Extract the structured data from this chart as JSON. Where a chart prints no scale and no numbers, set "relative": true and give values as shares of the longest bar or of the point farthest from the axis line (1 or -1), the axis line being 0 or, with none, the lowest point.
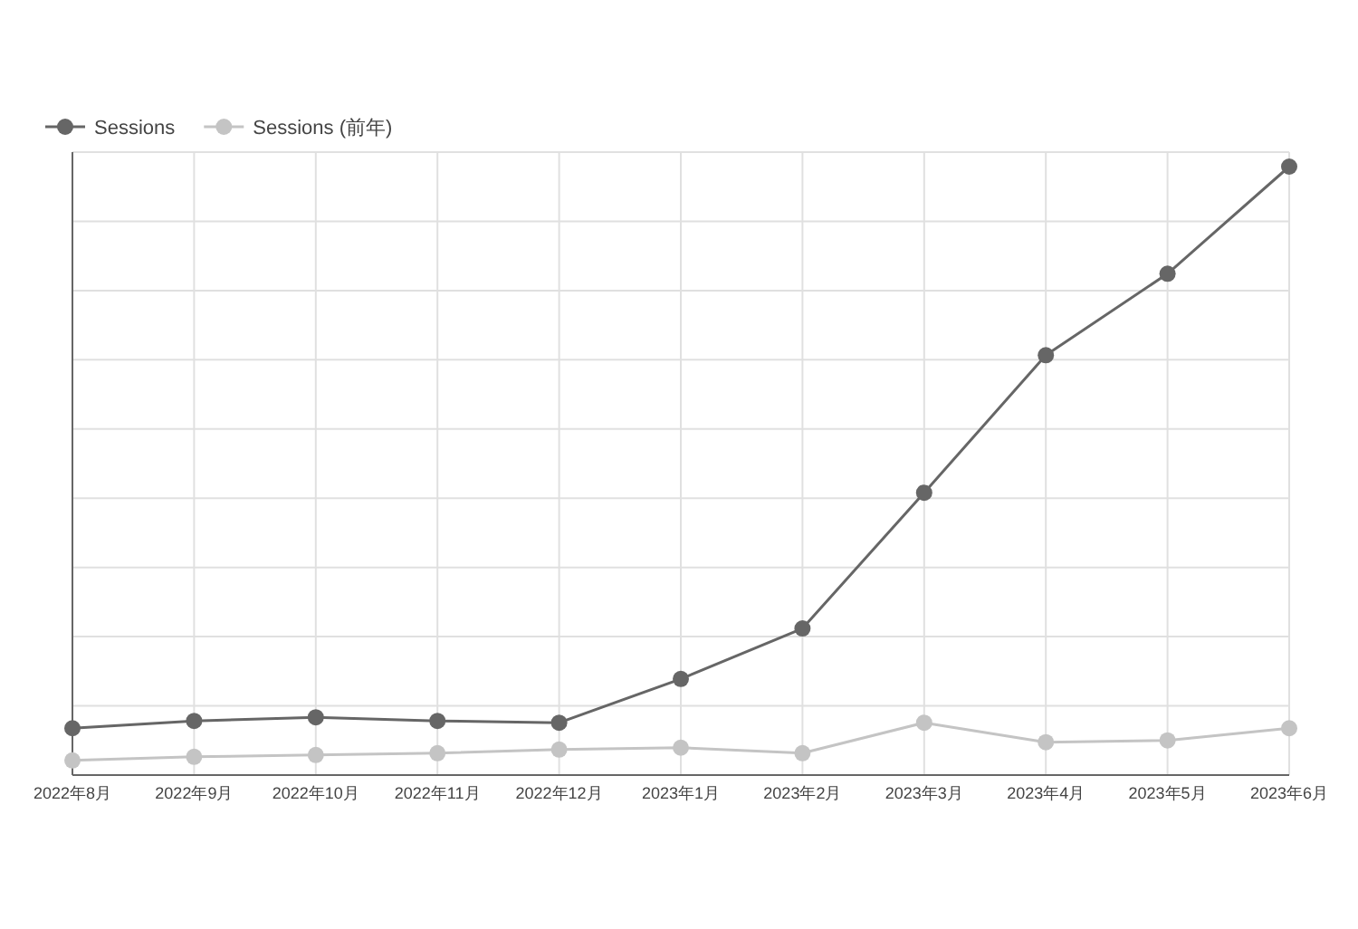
{
  "chart_data": {
    "type": "line",
    "relative": true,
    "grid": true,
    "legend": "top left",
    "marker": "circle",
    "line_style": "solid",
    "categories": [
      "2022年8月",
      "2022年9月",
      "2022年10月",
      "2022年11月",
      "2022年12月",
      "2023年1月",
      "2023年2月",
      "2023年3月",
      "2023年4月",
      "2023年5月",
      "2023年6月"
    ],
    "series": [
      {
        "name": "Sessions",
        "color": "#666666",
        "values": [
          0.077,
          0.089,
          0.095,
          0.089,
          0.086,
          0.158,
          0.241,
          0.464,
          0.69,
          0.824,
          1.0
        ]
      },
      {
        "name": "Sessions (前年)",
        "color": "#c4c4c4",
        "values": [
          0.024,
          0.03,
          0.033,
          0.036,
          0.042,
          0.045,
          0.036,
          0.086,
          0.054,
          0.057,
          0.077
        ]
      }
    ]
  }
}
